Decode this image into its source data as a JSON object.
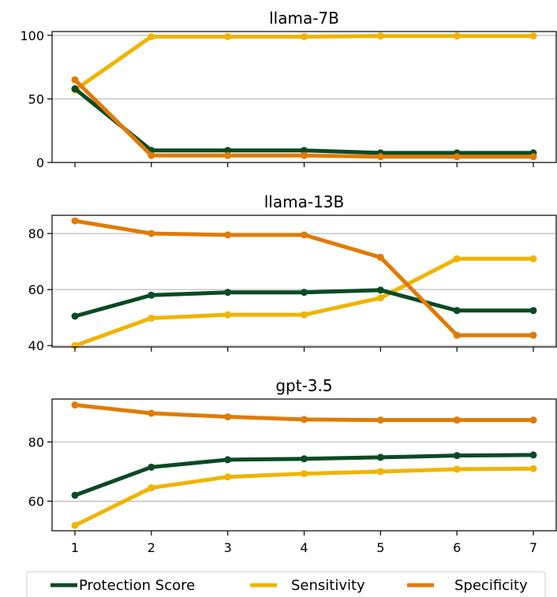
{
  "chart_data": {
    "type": "line",
    "x": [
      1,
      2,
      3,
      4,
      5,
      6,
      7
    ],
    "colors": {
      "Protection Score": "#0b4a24",
      "Sensitivity": "#f0b400",
      "Specificity": "#e07b06"
    },
    "grid": "horizontal",
    "legend": {
      "placement": "bottom",
      "entries": [
        "Protection Score",
        "Sensitivity",
        "Specificity"
      ]
    },
    "panels": [
      {
        "title": "llama-7B",
        "ylim": [
          0,
          103
        ],
        "yticks": [
          0,
          50,
          100
        ],
        "series": [
          {
            "name": "Protection Score",
            "values": [
              58,
              9.5,
              9.5,
              9.5,
              7.5,
              7.5,
              7.5
            ]
          },
          {
            "name": "Sensitivity",
            "values": [
              57,
              99,
              99,
              99,
              99.5,
              99.5,
              99.5
            ]
          },
          {
            "name": "Specificity",
            "values": [
              65,
              5.5,
              5.5,
              5.5,
              4.5,
              4.5,
              4.5
            ]
          }
        ]
      },
      {
        "title": "llama-13B",
        "ylim": [
          39.5,
          86.5
        ],
        "yticks": [
          40,
          60,
          80
        ],
        "series": [
          {
            "name": "Protection Score",
            "values": [
              50.5,
              58,
              59,
              59,
              59.8,
              52.5,
              52.5
            ]
          },
          {
            "name": "Sensitivity",
            "values": [
              40,
              49.8,
              51,
              51,
              57,
              71,
              71
            ]
          },
          {
            "name": "Specificity",
            "values": [
              84.5,
              80,
              79.5,
              79.5,
              71.5,
              43.7,
              43.7
            ]
          }
        ]
      },
      {
        "title": "gpt-3.5",
        "ylim": [
          50,
          94.5
        ],
        "yticks": [
          60,
          80
        ],
        "series": [
          {
            "name": "Protection Score",
            "values": [
              62,
              71.5,
              74,
              74.3,
              74.8,
              75.4,
              75.6
            ]
          },
          {
            "name": "Sensitivity",
            "values": [
              51.8,
              64.5,
              68.2,
              69.3,
              70,
              70.8,
              71
            ]
          },
          {
            "name": "Specificity",
            "values": [
              92.5,
              89.7,
              88.5,
              87.6,
              87.4,
              87.4,
              87.4
            ]
          }
        ]
      }
    ]
  }
}
